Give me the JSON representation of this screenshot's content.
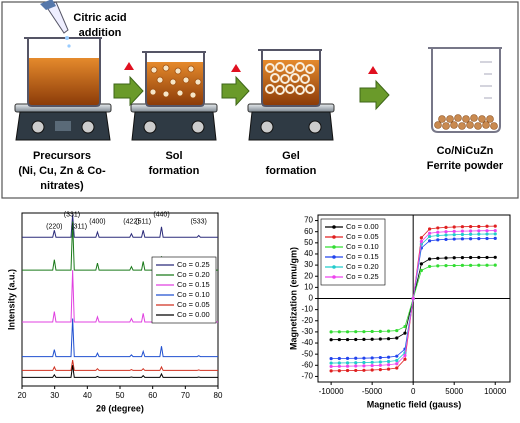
{
  "diagram": {
    "addition": [
      "Citric acid",
      "addition"
    ],
    "steps": [
      [
        "Precursors",
        "(Ni, Cu, Zn & Co-",
        "nitrates)"
      ],
      [
        "Sol",
        "formation"
      ],
      [
        "Gel",
        "formation"
      ],
      [
        "Co/NiCuZn",
        "Ferrite  powder"
      ]
    ]
  },
  "chart_data": [
    {
      "type": "line",
      "xlabel": "2θ (degree)",
      "ylabel": "Intensity (a.u.)",
      "x": [
        20,
        29.4,
        29.9,
        30.4,
        35.0,
        35.5,
        36.0,
        42.6,
        43.1,
        43.6,
        53.0,
        53.5,
        54.0,
        56.6,
        57.1,
        57.6,
        62.2,
        62.7,
        63.2,
        73.6,
        74.1,
        74.6,
        80
      ],
      "xlim": [
        20,
        80
      ],
      "xticks": [
        20,
        30,
        40,
        50,
        60,
        70,
        80
      ],
      "ylim": [
        0,
        100
      ],
      "legend": "upper right",
      "markers": false,
      "axes_at_zero": false,
      "series": [
        {
          "name": "Co = 0.25",
          "color": "#2b2b7a",
          "values": [
            86,
            86,
            90,
            86,
            86,
            99,
            86,
            86,
            89,
            86,
            86,
            88,
            86,
            86,
            90,
            86,
            86,
            92,
            86,
            86,
            87,
            86,
            86
          ]
        },
        {
          "name": "Co = 0.20",
          "color": "#1a7a1a",
          "values": [
            67,
            67,
            73,
            67,
            67,
            95,
            67,
            67,
            71,
            67,
            67,
            69,
            67,
            67,
            72,
            67,
            67,
            75,
            67,
            67,
            68,
            67,
            67
          ]
        },
        {
          "name": "Co = 0.15",
          "color": "#e040e0",
          "values": [
            37,
            37,
            43,
            37,
            37,
            67,
            37,
            37,
            40,
            37,
            37,
            39,
            37,
            37,
            42,
            37,
            37,
            45,
            37,
            37,
            38,
            37,
            37
          ]
        },
        {
          "name": "Co = 0.10",
          "color": "#2050d0",
          "values": [
            17,
            17,
            21,
            17,
            17,
            39,
            17,
            17,
            19,
            17,
            17,
            18,
            17,
            17,
            20,
            17,
            17,
            23,
            17,
            17,
            17.5,
            17,
            17
          ]
        },
        {
          "name": "Co = 0.05",
          "color": "#d03020",
          "values": [
            9,
            9,
            11,
            9,
            9,
            15,
            9,
            9,
            10,
            9,
            9,
            9.5,
            9,
            9,
            10,
            9,
            9,
            11,
            9,
            9,
            9.3,
            9,
            9
          ]
        },
        {
          "name": "Co = 0.00",
          "color": "#000000",
          "values": [
            5,
            5,
            6.5,
            5,
            5,
            12,
            5,
            5,
            5.5,
            5,
            5,
            5.2,
            5,
            5,
            6,
            5,
            5,
            7,
            5,
            5,
            5.2,
            5,
            5
          ]
        }
      ],
      "annotations": [
        {
          "text": "(220)",
          "x": 29.9,
          "y": 92
        },
        {
          "text": "(331)",
          "x": 35.3,
          "y": 99
        },
        {
          "text": "(311)",
          "x": 37.5,
          "y": 92
        },
        {
          "text": "(400)",
          "x": 43.1,
          "y": 95
        },
        {
          "text": "(422)",
          "x": 53.5,
          "y": 95
        },
        {
          "text": "(511)",
          "x": 57.1,
          "y": 95
        },
        {
          "text": "(440)",
          "x": 62.7,
          "y": 99
        },
        {
          "text": "(533)",
          "x": 74.1,
          "y": 95
        }
      ]
    },
    {
      "type": "line",
      "xlabel": "Magnetic field (gauss)",
      "ylabel": "Magnetization (emu/gm)",
      "x": [
        -10000,
        -9000,
        -8000,
        -7000,
        -6000,
        -5000,
        -4000,
        -3000,
        -2000,
        -1000,
        0,
        1000,
        2000,
        3000,
        4000,
        5000,
        6000,
        7000,
        8000,
        9000,
        10000
      ],
      "xlim": [
        -11600,
        11800
      ],
      "xticks": [
        -10000,
        -5000,
        0,
        5000,
        10000
      ],
      "ylim": [
        -75,
        75
      ],
      "yticks": [
        70,
        60,
        50,
        40,
        30,
        20,
        10,
        0,
        -10,
        -20,
        -30,
        -40,
        -50,
        -60,
        -70
      ],
      "legend": "upper left",
      "markers": true,
      "axes_at_zero": true,
      "series": [
        {
          "name": "Co = 0.00",
          "color": "#000000",
          "values": [
            -37,
            -36.9,
            -36.9,
            -36.8,
            -36.7,
            -36.6,
            -36.4,
            -36.1,
            -35.5,
            -31.1,
            0,
            31.1,
            35.5,
            36.1,
            36.4,
            36.6,
            36.7,
            36.8,
            36.9,
            36.9,
            37
          ]
        },
        {
          "name": "Co = 0.05",
          "color": "#e02020",
          "values": [
            -65,
            -64.9,
            -64.7,
            -64.6,
            -64.5,
            -64.2,
            -63.9,
            -63.4,
            -62.4,
            -54.6,
            0,
            54.6,
            62.4,
            63.4,
            63.9,
            64.2,
            64.5,
            64.6,
            64.7,
            64.9,
            65
          ]
        },
        {
          "name": "Co = 0.10",
          "color": "#33dd33",
          "values": [
            -30,
            -29.9,
            -29.9,
            -29.8,
            -29.8,
            -29.6,
            -29.5,
            -29.3,
            -28.8,
            -25.2,
            0,
            25.2,
            28.8,
            29.3,
            29.5,
            29.6,
            29.8,
            29.8,
            29.9,
            29.9,
            30
          ]
        },
        {
          "name": "Co = 0.15",
          "color": "#2244ee",
          "values": [
            -54,
            -53.9,
            -53.8,
            -53.7,
            -53.6,
            -53.4,
            -53.1,
            -52.7,
            -51.8,
            -45.4,
            0,
            45.4,
            51.8,
            52.7,
            53.1,
            53.4,
            53.6,
            53.7,
            53.8,
            53.9,
            54
          ]
        },
        {
          "name": "Co = 0.20",
          "color": "#22cccc",
          "values": [
            -58,
            -57.9,
            -57.8,
            -57.7,
            -57.5,
            -57.3,
            -57,
            -56.6,
            -55.7,
            -48.7,
            0,
            48.7,
            55.7,
            56.6,
            57,
            57.3,
            57.5,
            57.7,
            57.8,
            57.9,
            58
          ]
        },
        {
          "name": "Co = 0.25",
          "color": "#ee44ee",
          "values": [
            -61,
            -60.9,
            -60.8,
            -60.6,
            -60.5,
            -60.3,
            -60,
            -59.5,
            -58.6,
            -51.2,
            0,
            51.2,
            58.6,
            59.5,
            60,
            60.3,
            60.5,
            60.6,
            60.8,
            60.9,
            61
          ]
        }
      ]
    }
  ]
}
